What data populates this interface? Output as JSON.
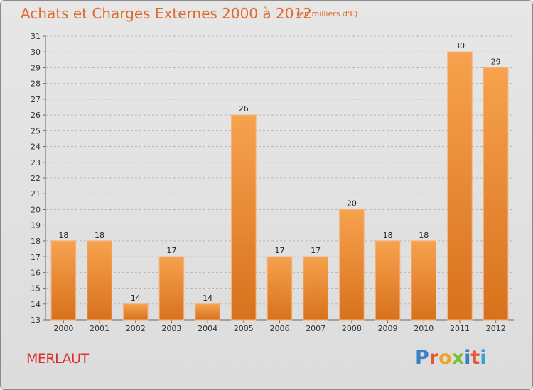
{
  "header": {
    "title": "Achats et Charges Externes 2000 à 2012",
    "unit": "(en milliers d'€)"
  },
  "footer": {
    "commune": "MERLAUT",
    "brand_letters": [
      "P",
      "r",
      "o",
      "x",
      "i",
      "t",
      "i"
    ],
    "brand_colors": [
      "#3b7fc4",
      "#e8563a",
      "#f2a11f",
      "#7bbf3a",
      "#3b7fc4",
      "#e8563a",
      "#3b9fd8"
    ]
  },
  "chart_data": {
    "type": "bar",
    "categories": [
      "2000",
      "2001",
      "2002",
      "2003",
      "2004",
      "2005",
      "2006",
      "2007",
      "2008",
      "2009",
      "2010",
      "2011",
      "2012"
    ],
    "values": [
      18,
      18,
      14,
      17,
      14,
      26,
      17,
      17,
      20,
      18,
      18,
      30,
      29
    ],
    "ylim": [
      13,
      31
    ],
    "yticks": [
      13,
      14,
      15,
      16,
      17,
      18,
      19,
      20,
      21,
      22,
      23,
      24,
      25,
      26,
      27,
      28,
      29,
      30,
      31
    ],
    "grid": true,
    "bar_color": "#f08a2e"
  }
}
